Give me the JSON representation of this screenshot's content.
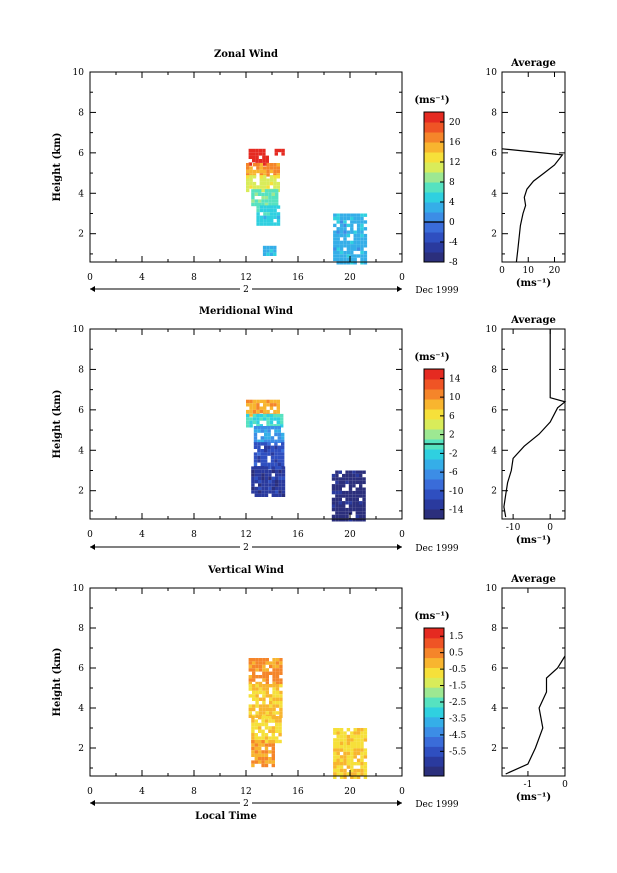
{
  "xlabel": "Local Time",
  "date_label": "Dec 1999",
  "day_label": "2",
  "colors": {
    "scale": [
      "#2b2f7c",
      "#2a3a9e",
      "#2f4fc0",
      "#3a6cd9",
      "#3c8de6",
      "#35aee8",
      "#2fd0e0",
      "#56e2c0",
      "#9de892",
      "#d9ec5a",
      "#f6e03a",
      "#f8b52f",
      "#f5852a",
      "#ef5425",
      "#e52a21"
    ]
  },
  "chart_data": [
    {
      "type": "heatmap",
      "title": "Zonal Wind",
      "ylabel": "Height (km)",
      "xlim": [
        0,
        24
      ],
      "ylim": [
        0.6,
        10
      ],
      "xticks": [
        "0",
        "4",
        "8",
        "12",
        "16",
        "20",
        "0"
      ],
      "yticks": [
        "2",
        "4",
        "6",
        "8",
        "10"
      ],
      "colorbar": {
        "unit": "(ms⁻¹)",
        "min": -8,
        "max": 22,
        "ticks": [
          "20",
          "16",
          "12",
          "8",
          "4",
          "0",
          "-4",
          "-8"
        ],
        "tick_values": [
          20,
          16,
          12,
          8,
          4,
          0,
          -4,
          -8
        ],
        "zero_line": 0
      },
      "blocks": [
        {
          "x": [
            12.2,
            13.6
          ],
          "y": [
            5.5,
            6.2
          ],
          "value": 21
        },
        {
          "x": [
            14.2,
            14.8
          ],
          "y": [
            5.9,
            6.2
          ],
          "value": 21
        },
        {
          "x": [
            12.0,
            14.6
          ],
          "y": [
            4.9,
            5.5
          ],
          "value": 16
        },
        {
          "x": [
            12.0,
            14.4
          ],
          "y": [
            4.2,
            4.9
          ],
          "value": 11
        },
        {
          "x": [
            12.4,
            14.4
          ],
          "y": [
            3.4,
            4.2
          ],
          "value": 7
        },
        {
          "x": [
            12.8,
            14.4
          ],
          "y": [
            2.5,
            3.4
          ],
          "value": 5
        },
        {
          "x": [
            13.3,
            14.2
          ],
          "y": [
            0.9,
            1.4
          ],
          "value": 4
        },
        {
          "x": [
            18.7,
            21.2
          ],
          "y": [
            0.6,
            3.0
          ],
          "value": 3
        }
      ],
      "average": {
        "title": "Average",
        "unit": "(ms⁻¹)",
        "xlim": [
          0,
          24
        ],
        "xticks": [
          "0",
          "10",
          "20"
        ],
        "xtick_values": [
          0,
          10,
          20
        ],
        "yticks": [
          "2",
          "4",
          "6",
          "8",
          "10"
        ],
        "profile": [
          [
            5.5,
            0.6
          ],
          [
            6,
            1.2
          ],
          [
            6.5,
            1.8
          ],
          [
            7,
            2.4
          ],
          [
            8,
            3.0
          ],
          [
            9,
            3.4
          ],
          [
            8.5,
            3.8
          ],
          [
            9.5,
            4.2
          ],
          [
            12,
            4.6
          ],
          [
            16,
            5.0
          ],
          [
            20,
            5.4
          ],
          [
            23,
            5.9
          ],
          [
            0,
            6.2
          ]
        ]
      }
    },
    {
      "type": "heatmap",
      "title": "Meridional Wind",
      "ylabel": "Height (km)",
      "xlim": [
        0,
        24
      ],
      "ylim": [
        0.6,
        10
      ],
      "xticks": [
        "0",
        "4",
        "8",
        "12",
        "16",
        "20",
        "0"
      ],
      "yticks": [
        "2",
        "4",
        "6",
        "8",
        "10"
      ],
      "colorbar": {
        "unit": "(ms⁻¹)",
        "min": -16,
        "max": 16,
        "ticks": [
          "14",
          "10",
          "6",
          "2",
          "-2",
          "-6",
          "-10",
          "-14"
        ],
        "tick_values": [
          14,
          10,
          6,
          2,
          -2,
          -6,
          -10,
          -14
        ],
        "zero_line": 0
      },
      "blocks": [
        {
          "x": [
            12.0,
            14.6
          ],
          "y": [
            5.8,
            6.5
          ],
          "value": 9
        },
        {
          "x": [
            12.0,
            14.8
          ],
          "y": [
            5.2,
            5.8
          ],
          "value": -1
        },
        {
          "x": [
            12.6,
            14.8
          ],
          "y": [
            4.4,
            5.2
          ],
          "value": -6
        },
        {
          "x": [
            12.6,
            14.8
          ],
          "y": [
            3.2,
            4.4
          ],
          "value": -11
        },
        {
          "x": [
            12.4,
            14.8
          ],
          "y": [
            1.8,
            3.2
          ],
          "value": -13
        },
        {
          "x": [
            18.6,
            21.2
          ],
          "y": [
            0.6,
            3.0
          ],
          "value": -15
        }
      ],
      "average": {
        "title": "Average",
        "unit": "(ms⁻¹)",
        "xlim": [
          -13,
          4
        ],
        "xticks": [
          "-10",
          "0"
        ],
        "xtick_values": [
          -10,
          0
        ],
        "yticks": [
          "2",
          "4",
          "6",
          "8",
          "10"
        ],
        "profile": [
          [
            -12,
            0.7
          ],
          [
            -12.5,
            1.2
          ],
          [
            -12,
            1.8
          ],
          [
            -11.5,
            2.4
          ],
          [
            -10.5,
            3.0
          ],
          [
            -10,
            3.6
          ],
          [
            -7,
            4.2
          ],
          [
            -3,
            4.8
          ],
          [
            0,
            5.4
          ],
          [
            2,
            6.1
          ],
          [
            4,
            6.4
          ],
          [
            0,
            6.6
          ],
          [
            0,
            10
          ]
        ]
      }
    },
    {
      "type": "heatmap",
      "title": "Vertical Wind",
      "ylabel": "Height (km)",
      "xlim": [
        0,
        24
      ],
      "ylim": [
        0.6,
        10
      ],
      "xticks": [
        "0",
        "4",
        "8",
        "12",
        "16",
        "20",
        "0"
      ],
      "yticks": [
        "2",
        "4",
        "6",
        "8",
        "10"
      ],
      "colorbar": {
        "unit": "(ms⁻¹)",
        "min": -7.0,
        "max": 2.0,
        "ticks": [
          "1.5",
          "0.5",
          "-0.5",
          "-1.5",
          "-2.5",
          "-3.5",
          "-4.5",
          "-5.5"
        ],
        "tick_values": [
          1.5,
          0.5,
          -0.5,
          -1.5,
          -2.5,
          -3.5,
          -4.5,
          -5.5
        ],
        "zero_line": null
      },
      "blocks": [
        {
          "x": [
            12.2,
            14.8
          ],
          "y": [
            5.2,
            6.5
          ],
          "value": 0.3
        },
        {
          "x": [
            12.2,
            14.8
          ],
          "y": [
            3.6,
            5.2
          ],
          "value": -0.4
        },
        {
          "x": [
            12.4,
            14.6
          ],
          "y": [
            2.4,
            3.6
          ],
          "value": -0.6
        },
        {
          "x": [
            12.4,
            14.2
          ],
          "y": [
            1.2,
            2.4
          ],
          "value": 0.2
        },
        {
          "x": [
            18.7,
            21.2
          ],
          "y": [
            0.6,
            3.0
          ],
          "value": -0.6
        }
      ],
      "average": {
        "title": "Average",
        "unit": "(ms⁻¹)",
        "xlim": [
          -1.7,
          0
        ],
        "xticks": [
          "-1",
          "0"
        ],
        "xtick_values": [
          -1,
          0
        ],
        "yticks": [
          "2",
          "4",
          "6",
          "8",
          "10"
        ],
        "profile": [
          [
            -1.6,
            0.7
          ],
          [
            -1.0,
            1.2
          ],
          [
            -0.8,
            2.0
          ],
          [
            -0.6,
            3.0
          ],
          [
            -0.7,
            4.0
          ],
          [
            -0.5,
            4.8
          ],
          [
            -0.5,
            5.5
          ],
          [
            -0.2,
            6.0
          ],
          [
            0,
            6.6
          ]
        ]
      }
    }
  ]
}
